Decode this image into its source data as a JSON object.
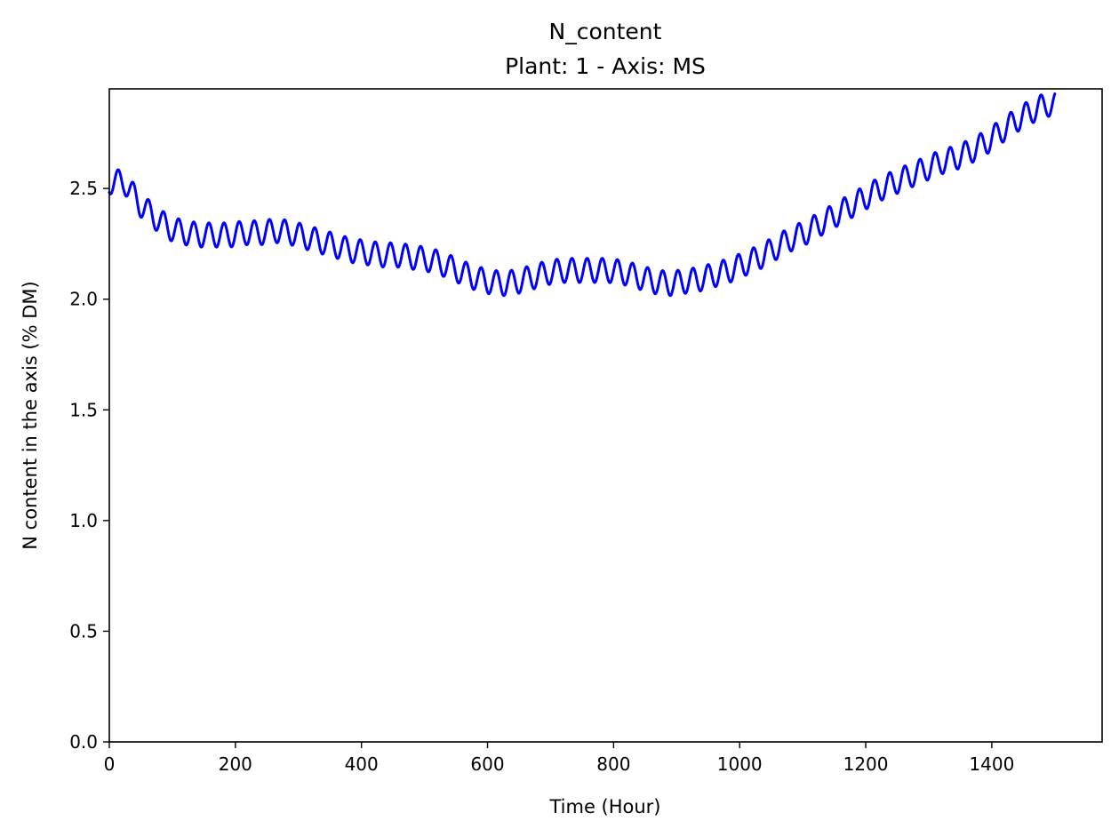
{
  "chart_data": {
    "type": "line",
    "title": "N_content",
    "subtitle": "Plant: 1 - Axis: MS",
    "xlabel": "Time (Hour)",
    "ylabel": "N content in the axis (% DM)",
    "xlim": [
      0,
      1575
    ],
    "ylim": [
      0,
      2.95
    ],
    "xticks": [
      0,
      200,
      400,
      600,
      800,
      1000,
      1200,
      1400
    ],
    "yticks": [
      0.0,
      0.5,
      1.0,
      1.5,
      2.0,
      2.5
    ],
    "xtick_labels": [
      "0",
      "200",
      "400",
      "600",
      "800",
      "1000",
      "1200",
      "1400"
    ],
    "ytick_labels": [
      "0.0",
      "0.5",
      "1.0",
      "1.5",
      "2.0",
      "2.5"
    ],
    "grid": false,
    "series": [
      {
        "color": "#0000ff",
        "x": [
          0,
          24,
          48,
          72,
          96,
          120,
          144,
          168,
          192,
          216,
          240,
          264,
          288,
          312,
          336,
          360,
          384,
          408,
          432,
          456,
          480,
          504,
          528,
          552,
          576,
          600,
          624,
          648,
          672,
          696,
          720,
          744,
          768,
          792,
          816,
          840,
          864,
          888,
          912,
          936,
          960,
          984,
          1008,
          1032,
          1056,
          1080,
          1104,
          1128,
          1152,
          1176,
          1200,
          1224,
          1248,
          1272,
          1296,
          1320,
          1344,
          1368,
          1392,
          1416,
          1440,
          1464,
          1488,
          1500
        ],
        "y": [
          2.53,
          2.53,
          2.43,
          2.37,
          2.32,
          2.3,
          2.29,
          2.29,
          2.29,
          2.3,
          2.3,
          2.31,
          2.3,
          2.28,
          2.26,
          2.24,
          2.22,
          2.21,
          2.2,
          2.2,
          2.19,
          2.18,
          2.16,
          2.13,
          2.1,
          2.08,
          2.07,
          2.08,
          2.1,
          2.12,
          2.13,
          2.13,
          2.13,
          2.13,
          2.12,
          2.1,
          2.08,
          2.07,
          2.08,
          2.09,
          2.11,
          2.13,
          2.16,
          2.19,
          2.23,
          2.27,
          2.3,
          2.34,
          2.38,
          2.42,
          2.46,
          2.5,
          2.53,
          2.56,
          2.59,
          2.62,
          2.64,
          2.67,
          2.71,
          2.76,
          2.81,
          2.85,
          2.88,
          2.88
        ],
        "oscillation": {
          "period_hours": 24,
          "amplitude": 0.055
        }
      }
    ]
  }
}
